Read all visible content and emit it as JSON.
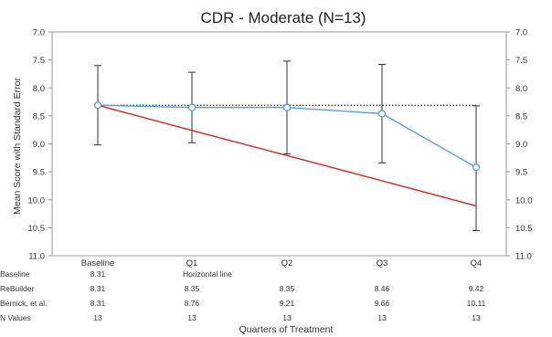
{
  "chart_data": {
    "type": "line",
    "title": "CDR - Moderate (N=13)",
    "ylabel": "Mean Score with Standard Error",
    "xlabel": "Quarters of Treatment",
    "ylim": [
      7.0,
      11.0
    ],
    "y_inverted": true,
    "yticks": [
      "7.0",
      "7.5",
      "8.0",
      "8.5",
      "9.0",
      "9.5",
      "10.0",
      "10.5",
      "11.0"
    ],
    "categories": [
      "Baseline",
      "Q1",
      "Q2",
      "Q3",
      "Q4"
    ],
    "series": [
      {
        "name": "Baseline",
        "style": "dotted",
        "color": "#333333",
        "values": [
          8.31,
          8.31,
          8.31,
          8.31,
          8.31
        ],
        "table_row": [
          "8.31",
          "Horizontal line",
          "",
          "",
          ""
        ]
      },
      {
        "name": "ReBuilder",
        "style": "line-markers",
        "color": "#5b9bd5",
        "values": [
          8.31,
          8.35,
          8.35,
          8.46,
          9.42
        ],
        "error_low": [
          7.6,
          7.72,
          7.52,
          7.58,
          8.32
        ],
        "error_high": [
          9.02,
          8.98,
          9.18,
          9.34,
          10.55
        ],
        "table_row": [
          "8.31",
          "8.35",
          "8.35",
          "8.46",
          "9.42"
        ]
      },
      {
        "name": "Bernick, et al.",
        "style": "line",
        "color": "#d62728",
        "values": [
          8.31,
          8.76,
          9.21,
          9.66,
          10.11
        ],
        "table_row": [
          "8.31",
          "8.76",
          "9.21",
          "9.66",
          "10.11"
        ]
      }
    ],
    "n_values": {
      "name": "N Values",
      "table_row": [
        "13",
        "13",
        "13",
        "13",
        "13"
      ]
    },
    "grid": false,
    "legend": "data-table"
  }
}
